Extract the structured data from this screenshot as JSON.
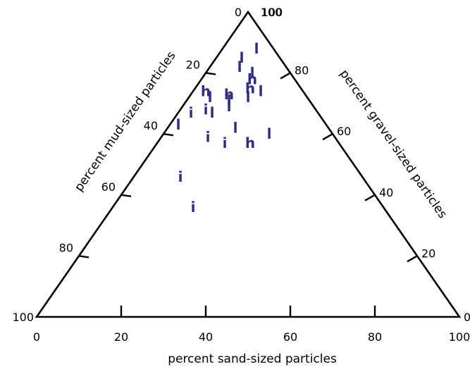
{
  "chart_data": {
    "type": "ternary-scatter",
    "axes": {
      "sand": {
        "label": "percent sand-sized particles",
        "ticks": [
          0,
          20,
          40,
          60,
          80,
          100
        ],
        "tick_labels": [
          "0",
          "20",
          "40",
          "60",
          "80",
          "100"
        ]
      },
      "mud": {
        "label": "percent mud-sized particles",
        "ticks": [
          20,
          40,
          60,
          80,
          100
        ],
        "tick_labels": [
          "20",
          "40",
          "60",
          "80",
          "100"
        ]
      },
      "gravel": {
        "label": "percent gravel-sized particles",
        "ticks": [
          0,
          20,
          40,
          60,
          80,
          100
        ],
        "tick_labels": [
          "0",
          "20",
          "40",
          "60",
          "80",
          "100"
        ]
      },
      "apex_labels": {
        "left": "0",
        "right": "100"
      }
    },
    "colors": {
      "frame": "#000000",
      "points": "#2e2f84"
    },
    "points": [
      {
        "glyph": "l",
        "sand": 8,
        "gravel": 88
      },
      {
        "glyph": "l",
        "sand": 6,
        "gravel": 85
      },
      {
        "glyph": "l",
        "sand": 7,
        "gravel": 82
      },
      {
        "glyph": "l",
        "sand": 11,
        "gravel": 80
      },
      {
        "glyph": "h",
        "sand": 12,
        "gravel": 78
      },
      {
        "glyph": "h",
        "sand": 13,
        "gravel": 75
      },
      {
        "glyph": "l",
        "sand": 16,
        "gravel": 74
      },
      {
        "glyph": "h",
        "sand": 9,
        "gravel": 73
      },
      {
        "glyph": "l",
        "sand": 14,
        "gravel": 72
      },
      {
        "glyph": "l",
        "sand": 10,
        "gravel": 71
      },
      {
        "glyph": "h",
        "sand": 3,
        "gravel": 74
      },
      {
        "glyph": "l",
        "sand": 5,
        "gravel": 72
      },
      {
        "glyph": "l",
        "sand": 8,
        "gravel": 67
      },
      {
        "glyph": "l",
        "sand": 11,
        "gravel": 69
      },
      {
        "glyph": "i",
        "sand": 3,
        "gravel": 67
      },
      {
        "glyph": "i",
        "sand": 6,
        "gravel": 68
      },
      {
        "glyph": "l",
        "sand": 2,
        "gravel": 63
      },
      {
        "glyph": "l",
        "sand": 16,
        "gravel": 62
      },
      {
        "glyph": "i",
        "sand": 11,
        "gravel": 59
      },
      {
        "glyph": "i",
        "sand": 16,
        "gravel": 57
      },
      {
        "glyph": "h",
        "sand": 22,
        "gravel": 57
      },
      {
        "glyph": "l",
        "sand": 25,
        "gravel": 60
      },
      {
        "glyph": "i",
        "sand": 11,
        "gravel": 46
      },
      {
        "glyph": "i",
        "sand": 19,
        "gravel": 36
      }
    ]
  }
}
